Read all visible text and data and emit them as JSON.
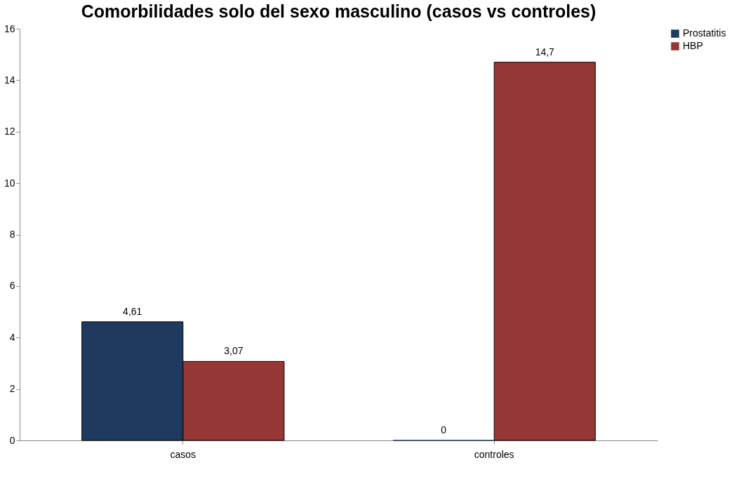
{
  "chart_data": {
    "type": "bar",
    "title": "Comorbilidades solo del sexo masculino (casos vs controles)",
    "categories": [
      "casos",
      "controles"
    ],
    "series": [
      {
        "name": "Prostatitis",
        "color": "#1f3a5f",
        "values": [
          4.61,
          0
        ],
        "value_labels": [
          "4,61",
          "0"
        ]
      },
      {
        "name": "HBP",
        "color": "#953735",
        "values": [
          3.07,
          14.7
        ],
        "value_labels": [
          "3,07",
          "14,7"
        ]
      }
    ],
    "ylim": [
      0,
      16
    ],
    "yticks": [
      0,
      2,
      4,
      6,
      8,
      10,
      12,
      14,
      16
    ],
    "grid": false,
    "legend": "right"
  }
}
